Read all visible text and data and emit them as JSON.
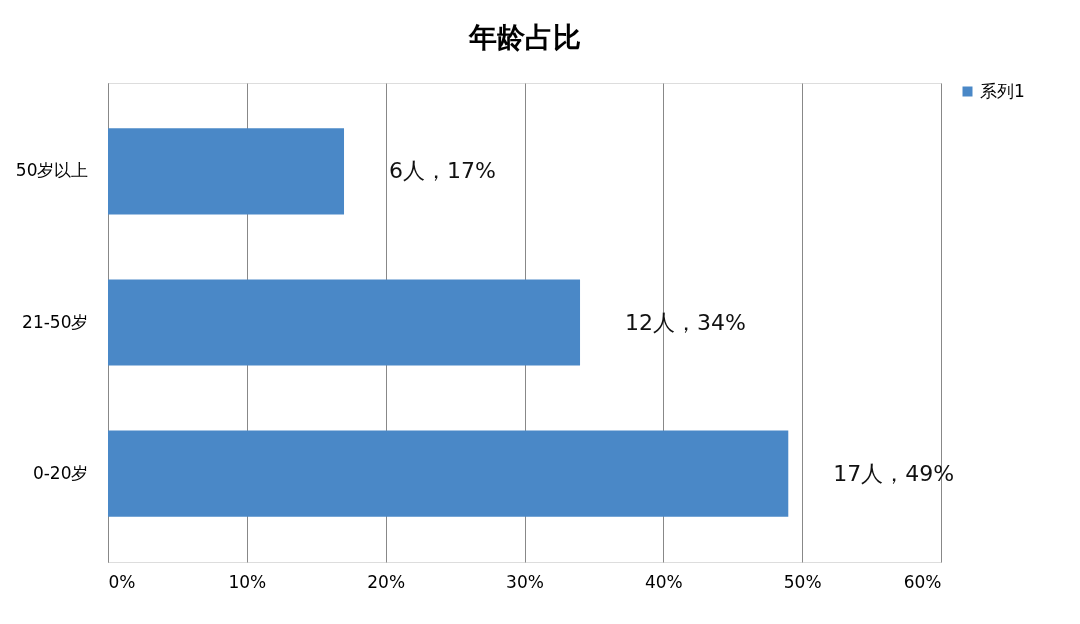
{
  "chart_data": {
    "type": "bar",
    "title": "年龄占比",
    "orientation": "horizontal",
    "categories": [
      "50岁以上",
      "21-50岁",
      "0-20岁"
    ],
    "series": [
      {
        "name": "系列1",
        "color": "#4a88c7",
        "values": [
          17,
          34,
          49
        ],
        "value_labels": [
          "6人，17%",
          "12人，34%",
          "17人，49%"
        ]
      }
    ],
    "xlim": [
      0,
      60
    ],
    "xticks": [
      {
        "value": 0,
        "label": "0%"
      },
      {
        "value": 10,
        "label": "10%"
      },
      {
        "value": 20,
        "label": "20%"
      },
      {
        "value": 30,
        "label": "30%"
      },
      {
        "value": 40,
        "label": "40%"
      },
      {
        "value": 50,
        "label": "50%"
      },
      {
        "value": 60,
        "label": "60%"
      }
    ],
    "grid": "x",
    "legend": "right"
  }
}
